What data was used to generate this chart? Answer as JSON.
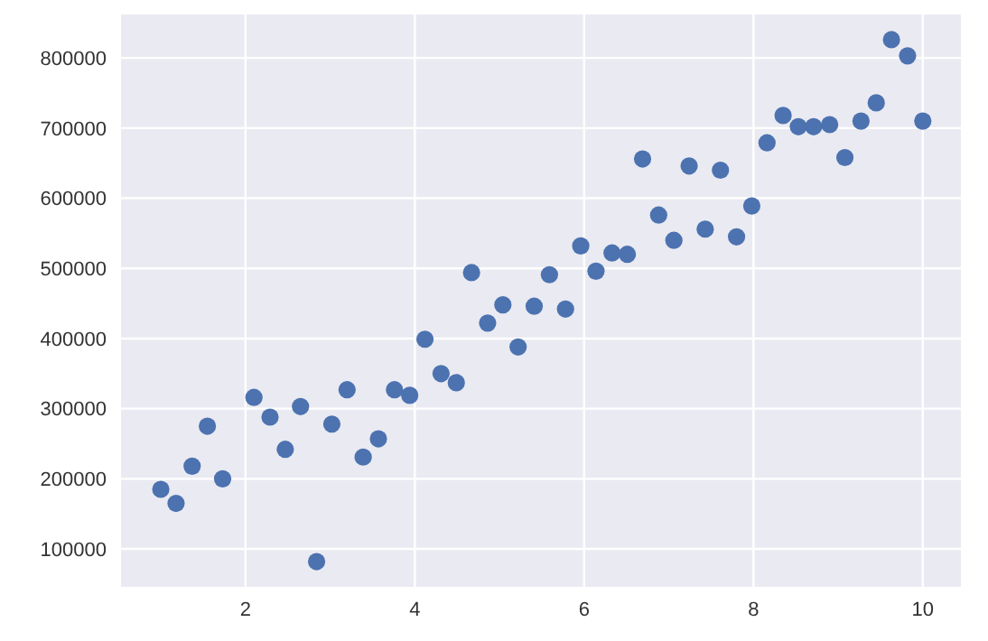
{
  "chart_data": {
    "type": "scatter",
    "x": [
      1.0,
      1.18,
      1.37,
      1.55,
      1.73,
      2.1,
      2.29,
      2.47,
      2.65,
      2.84,
      3.02,
      3.2,
      3.39,
      3.57,
      3.76,
      3.94,
      4.12,
      4.31,
      4.49,
      4.67,
      4.86,
      5.04,
      5.22,
      5.41,
      5.59,
      5.78,
      5.96,
      6.14,
      6.33,
      6.51,
      6.69,
      6.88,
      7.06,
      7.24,
      7.43,
      7.61,
      7.8,
      7.98,
      8.16,
      8.35,
      8.53,
      8.71,
      8.9,
      9.08,
      9.27,
      9.45,
      9.63,
      9.82,
      10.0
    ],
    "series": [
      {
        "color": "#4c72b0",
        "values": [
          185000,
          165000,
          218000,
          275000,
          200000,
          316000,
          288000,
          242000,
          303000,
          82000,
          278000,
          327000,
          231000,
          257000,
          327000,
          319000,
          399000,
          350000,
          337000,
          494000,
          422000,
          448000,
          388000,
          446000,
          491000,
          442000,
          532000,
          496000,
          522000,
          520000,
          656000,
          576000,
          540000,
          646000,
          556000,
          640000,
          545000,
          589000,
          679000,
          718000,
          702000,
          702000,
          705000,
          658000,
          710000,
          736000,
          826000,
          803000,
          710000
        ]
      }
    ],
    "xlim": [
      0.53,
      10.45
    ],
    "xticks": [
      2,
      4,
      6,
      8,
      10
    ],
    "ylim": [
      46000,
      862000
    ],
    "yticks": [
      100000,
      200000,
      300000,
      400000,
      500000,
      600000,
      700000,
      800000
    ],
    "grid": true,
    "marker": "circle"
  }
}
